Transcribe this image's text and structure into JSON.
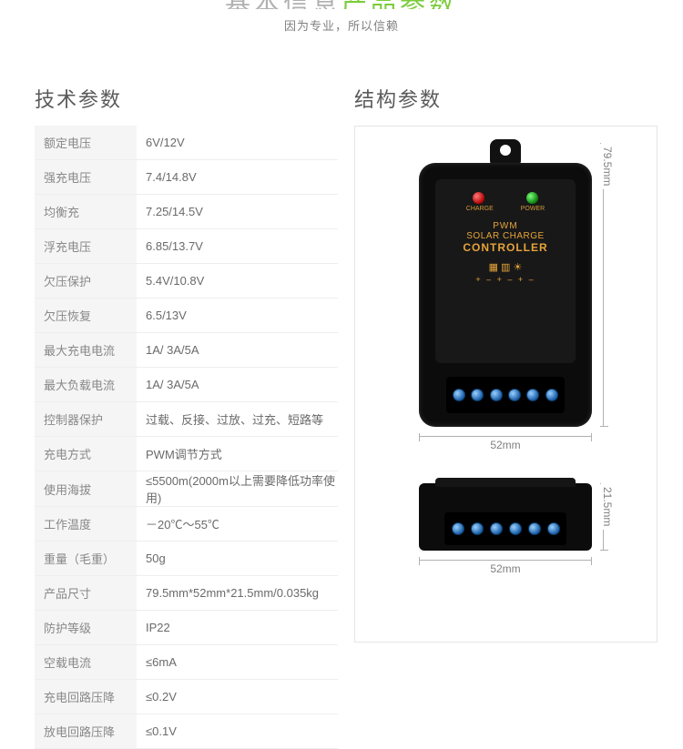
{
  "header": {
    "title_gray": "基本信息",
    "title_green": "产品参数",
    "subtitle": "因为专业，所以信赖"
  },
  "left": {
    "title": "技术参数",
    "rows": [
      {
        "label": "额定电压",
        "value": "6V/12V"
      },
      {
        "label": "强充电压",
        "value": "7.4/14.8V"
      },
      {
        "label": "均衡充",
        "value": "7.25/14.5V"
      },
      {
        "label": "浮充电压",
        "value": "6.85/13.7V"
      },
      {
        "label": "欠压保护",
        "value": "5.4V/10.8V"
      },
      {
        "label": "欠压恢复",
        "value": "6.5/13V"
      },
      {
        "label": "最大充电电流",
        "value": "1A/ 3A/5A"
      },
      {
        "label": "最大负载电流",
        "value": "1A/ 3A/5A"
      },
      {
        "label": "控制器保护",
        "value": "过载、反接、过放、过充、短路等"
      },
      {
        "label": "充电方式",
        "value": "PWM调节方式"
      },
      {
        "label": "使用海拔",
        "value": "≤5500m(2000m以上需要降低功率使用)"
      },
      {
        "label": "工作温度",
        "value": "－20℃～55℃"
      },
      {
        "label": "重量（毛重）",
        "value": " 50g"
      },
      {
        "label": "产品尺寸",
        "value": "79.5mm*52mm*21.5mm/0.035kg"
      },
      {
        "label": "防护等级",
        "value": "IP22"
      },
      {
        "label": "空载电流",
        "value": "≤6mA"
      },
      {
        "label": "充电回路压降",
        "value": "≤0.2V"
      },
      {
        "label": "放电回路压降",
        "value": "≤0.1V"
      }
    ]
  },
  "right": {
    "title": "结构参数",
    "device": {
      "led_charge_label": "CHARGE",
      "led_power_label": "POWER",
      "line1": "PWM",
      "line2": "SOLAR CHARGE",
      "line3": "CONTROLLER",
      "icons": "▦  ▥  ☀",
      "polarity": "+  –  +  –  +  –",
      "text_color": "#e6a43a",
      "body_color": "#0c0c0c",
      "led_red": "#b30000",
      "led_green": "#0a7d0a",
      "screw_color": "#1a5fa8"
    },
    "dimensions": {
      "width": "52mm",
      "height": "79.5mm",
      "depth": "21.5mm"
    }
  }
}
